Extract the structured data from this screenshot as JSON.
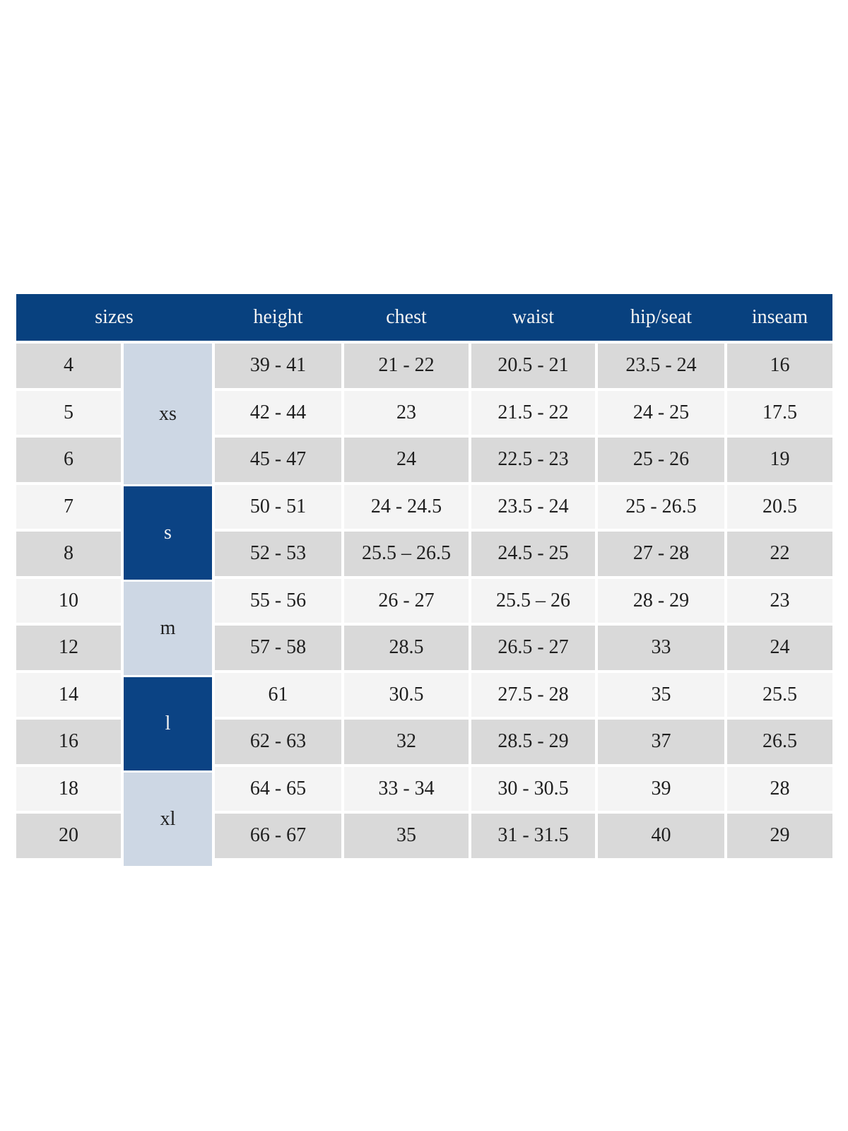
{
  "colors": {
    "header_bg": "#08417f",
    "dark_group_bg": "#0b4384",
    "light_group_bg": "#cdd7e4",
    "row_shade_a": "#d9d9d9",
    "row_shade_b": "#f4f4f4",
    "header_text": "#f3f3f3",
    "body_text": "#1f1f1f",
    "page_bg": "#ffffff"
  },
  "chart_data": {
    "type": "table",
    "columns": [
      "sizes",
      "height",
      "chest",
      "waist",
      "hip/seat",
      "inseam"
    ],
    "size_groups": [
      {
        "label": "xs",
        "sizes": [
          "4",
          "5",
          "6"
        ],
        "tone": "light"
      },
      {
        "label": "s",
        "sizes": [
          "7",
          "8"
        ],
        "tone": "dark"
      },
      {
        "label": "m",
        "sizes": [
          "10",
          "12"
        ],
        "tone": "light"
      },
      {
        "label": "l",
        "sizes": [
          "14",
          "16"
        ],
        "tone": "dark"
      },
      {
        "label": "xl",
        "sizes": [
          "18",
          "20"
        ],
        "tone": "light"
      }
    ],
    "rows": [
      {
        "size": "4",
        "height": "39 - 41",
        "chest": "21 - 22",
        "waist": "20.5 - 21",
        "hip_seat": "23.5 - 24",
        "inseam": "16"
      },
      {
        "size": "5",
        "height": "42 - 44",
        "chest": "23",
        "waist": "21.5 - 22",
        "hip_seat": "24 - 25",
        "inseam": "17.5"
      },
      {
        "size": "6",
        "height": "45 - 47",
        "chest": "24",
        "waist": "22.5 - 23",
        "hip_seat": "25 - 26",
        "inseam": "19"
      },
      {
        "size": "7",
        "height": "50 - 51",
        "chest": "24 - 24.5",
        "waist": "23.5 - 24",
        "hip_seat": "25 - 26.5",
        "inseam": "20.5"
      },
      {
        "size": "8",
        "height": "52 - 53",
        "chest": "25.5 – 26.5",
        "waist": "24.5 - 25",
        "hip_seat": "27 - 28",
        "inseam": "22"
      },
      {
        "size": "10",
        "height": "55 - 56",
        "chest": "26 - 27",
        "waist": "25.5 – 26",
        "hip_seat": "28 - 29",
        "inseam": "23"
      },
      {
        "size": "12",
        "height": "57 - 58",
        "chest": "28.5",
        "waist": "26.5 - 27",
        "hip_seat": "33",
        "inseam": "24"
      },
      {
        "size": "14",
        "height": "61",
        "chest": "30.5",
        "waist": "27.5 - 28",
        "hip_seat": "35",
        "inseam": "25.5"
      },
      {
        "size": "16",
        "height": "62 - 63",
        "chest": "32",
        "waist": "28.5 - 29",
        "hip_seat": "37",
        "inseam": "26.5"
      },
      {
        "size": "18",
        "height": "64 - 65",
        "chest": "33 - 34",
        "waist": "30 - 30.5",
        "hip_seat": "39",
        "inseam": "28"
      },
      {
        "size": "20",
        "height": "66 - 67",
        "chest": "35",
        "waist": "31 - 31.5",
        "hip_seat": "40",
        "inseam": "29"
      }
    ]
  }
}
